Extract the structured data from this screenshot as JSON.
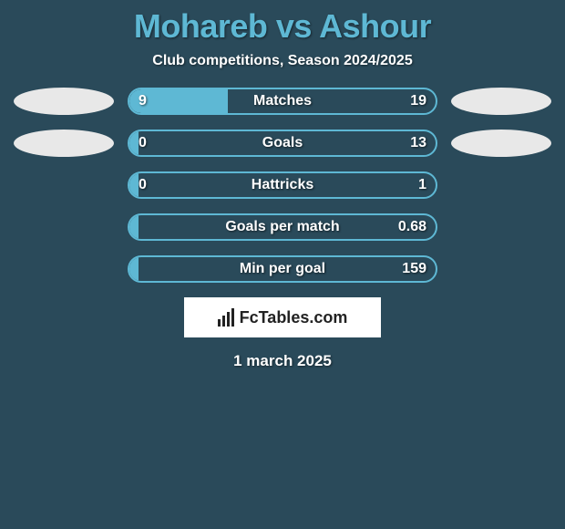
{
  "background_color": "#2a4a5a",
  "title": {
    "text": "Mohareb vs Ashour",
    "color": "#5eb8d4",
    "fontsize": 36
  },
  "subtitle": {
    "text": "Club competitions, Season 2024/2025",
    "color": "#ffffff",
    "fontsize": 16
  },
  "bars": {
    "border_color": "#5eb8d4",
    "fill_color": "#5eb8d4",
    "text_color": "#ffffff",
    "label_fontsize": 16,
    "value_fontsize": 16,
    "track_width": 340,
    "track_height": 30,
    "rows": [
      {
        "label": "Matches",
        "left": "9",
        "right": "19",
        "left_pct": 32,
        "show_ellipses": true
      },
      {
        "label": "Goals",
        "left": "0",
        "right": "13",
        "left_pct": 3,
        "show_ellipses": true
      },
      {
        "label": "Hattricks",
        "left": "0",
        "right": "1",
        "left_pct": 3,
        "show_ellipses": false
      },
      {
        "label": "Goals per match",
        "left": "",
        "right": "0.68",
        "left_pct": 3,
        "show_ellipses": false
      },
      {
        "label": "Min per goal",
        "left": "",
        "right": "159",
        "left_pct": 3,
        "show_ellipses": false
      }
    ]
  },
  "ellipse": {
    "color": "#e8e8e8",
    "width": 110,
    "height": 30
  },
  "logo": {
    "text": "FcTables.com",
    "background": "#ffffff",
    "text_color": "#222222",
    "fontsize": 18
  },
  "date": {
    "text": "1 march 2025",
    "color": "#ffffff",
    "fontsize": 17
  }
}
